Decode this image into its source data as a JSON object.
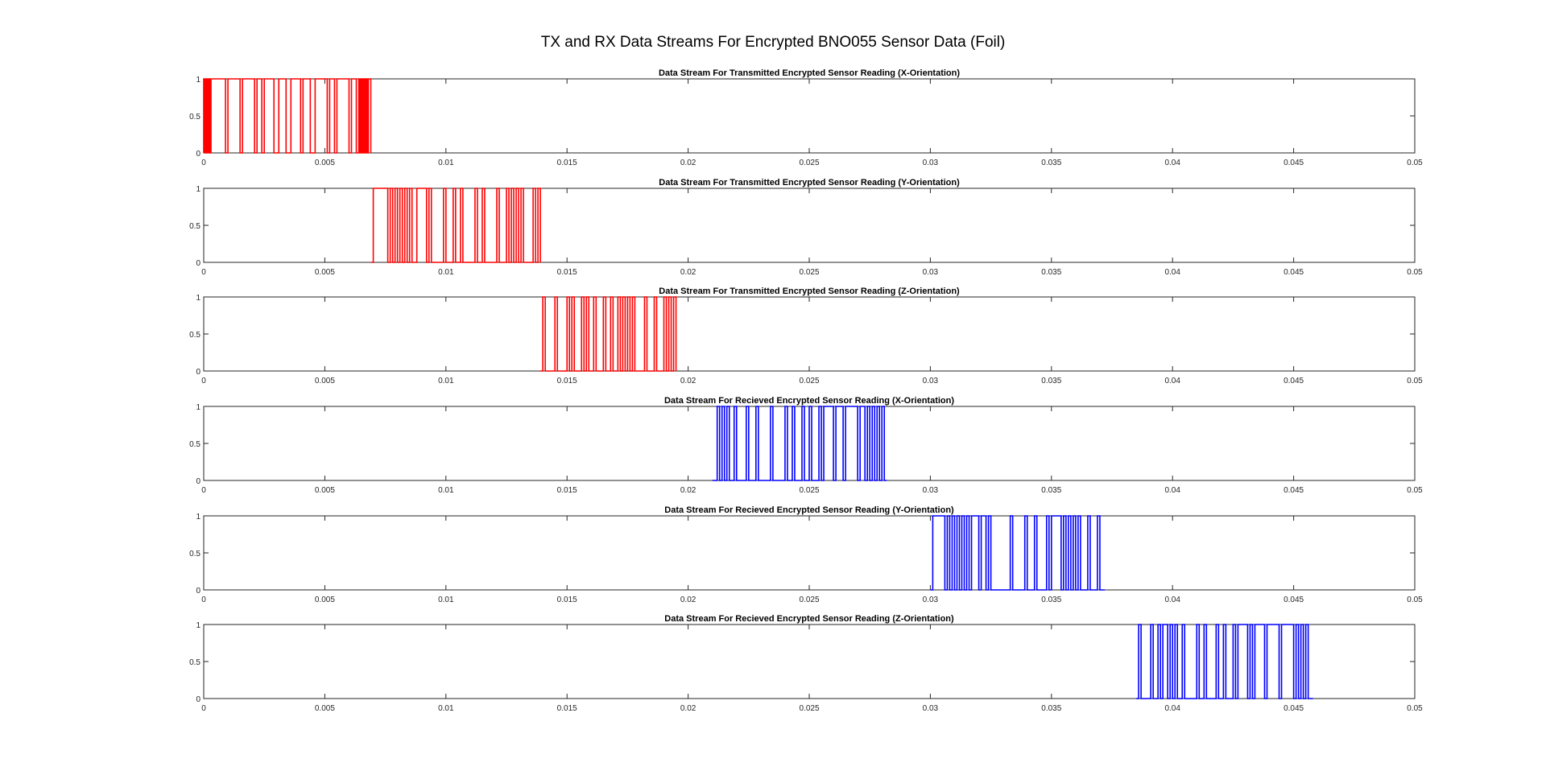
{
  "figure": {
    "title": "TX and RX Data Streams For Encrypted BNO055 Sensor Data (Foil)"
  },
  "chart_data": [
    {
      "type": "line",
      "title": "Data Stream For Transmitted Encrypted Sensor Reading (X-Orientation)",
      "xlim": [
        0,
        0.05
      ],
      "ylim": [
        0,
        1
      ],
      "xticks": [
        "0",
        "0.005",
        "0.01",
        "0.015",
        "0.02",
        "0.025",
        "0.03",
        "0.035",
        "0.04",
        "0.045",
        "0.05"
      ],
      "yticks": [
        "0",
        "0.5",
        "1"
      ],
      "grid": false,
      "color": "#ff0000",
      "series": [
        {
          "x_start": 0.0,
          "x_end": 0.0069,
          "edges": [
            0.0,
            5e-05,
            0.0001,
            0.00015,
            0.0002,
            0.00025,
            0.0003,
            0.0009,
            0.001,
            0.0015,
            0.0016,
            0.0021,
            0.0022,
            0.0024,
            0.0025,
            0.0029,
            0.0031,
            0.0034,
            0.0036,
            0.004,
            0.0041,
            0.0044,
            0.0046,
            0.0051,
            0.0052,
            0.0054,
            0.0055,
            0.006,
            0.0061,
            0.0063,
            0.0064,
            0.00645,
            0.0065,
            0.00655,
            0.0066,
            0.00665,
            0.0067,
            0.00675,
            0.0068,
            0.0069
          ]
        }
      ]
    },
    {
      "type": "line",
      "title": "Data Stream For Transmitted Encrypted Sensor Reading (Y-Orientation)",
      "xlim": [
        0,
        0.05
      ],
      "ylim": [
        0,
        1
      ],
      "xticks": [
        "0",
        "0.005",
        "0.01",
        "0.015",
        "0.02",
        "0.025",
        "0.03",
        "0.035",
        "0.04",
        "0.045",
        "0.05"
      ],
      "yticks": [
        "0",
        "0.5",
        "1"
      ],
      "grid": false,
      "color": "#ff0000",
      "series": [
        {
          "x_start": 0.0069,
          "x_end": 0.0139,
          "edges": [
            0.007,
            0.0076,
            0.0077,
            0.0078,
            0.0079,
            0.008,
            0.0081,
            0.0082,
            0.0083,
            0.0084,
            0.0085,
            0.0086,
            0.0088,
            0.0092,
            0.0093,
            0.0094,
            0.0099,
            0.01,
            0.0103,
            0.0104,
            0.0106,
            0.0107,
            0.0112,
            0.0113,
            0.0115,
            0.0116,
            0.0121,
            0.0122,
            0.0125,
            0.0126,
            0.0127,
            0.0128,
            0.0129,
            0.013,
            0.0131,
            0.0132,
            0.0136,
            0.0137,
            0.0138,
            0.0139
          ]
        }
      ]
    },
    {
      "type": "line",
      "title": "Data Stream For Transmitted Encrypted Sensor Reading (Z-Orientation)",
      "xlim": [
        0,
        0.05
      ],
      "ylim": [
        0,
        1
      ],
      "xticks": [
        "0",
        "0.005",
        "0.01",
        "0.015",
        "0.02",
        "0.025",
        "0.03",
        "0.035",
        "0.04",
        "0.045",
        "0.05"
      ],
      "yticks": [
        "0",
        "0.5",
        "1"
      ],
      "grid": false,
      "color": "#ff0000",
      "series": [
        {
          "x_start": 0.0139,
          "x_end": 0.0195,
          "edges": [
            0.014,
            0.0141,
            0.0145,
            0.0146,
            0.015,
            0.0151,
            0.0152,
            0.0153,
            0.0156,
            0.0157,
            0.0158,
            0.0159,
            0.0161,
            0.0162,
            0.0165,
            0.0166,
            0.0168,
            0.0169,
            0.0171,
            0.0172,
            0.0173,
            0.0174,
            0.0175,
            0.0176,
            0.0177,
            0.0178,
            0.0182,
            0.0183,
            0.0186,
            0.0187,
            0.019,
            0.0191,
            0.0192,
            0.0193,
            0.0194
          ]
        }
      ]
    },
    {
      "type": "line",
      "title": "Data Stream For Recieved Encrypted Sensor Reading (X-Orientation)",
      "xlim": [
        0,
        0.05
      ],
      "ylim": [
        0,
        1
      ],
      "xticks": [
        "0",
        "0.005",
        "0.01",
        "0.015",
        "0.02",
        "0.025",
        "0.03",
        "0.035",
        "0.04",
        "0.045",
        "0.05"
      ],
      "yticks": [
        "0",
        "0.5",
        "1"
      ],
      "grid": false,
      "color": "#0000ff",
      "series": [
        {
          "x_start": 0.021,
          "x_end": 0.0282,
          "edges": [
            0.0212,
            0.0213,
            0.0214,
            0.0215,
            0.0216,
            0.0217,
            0.0219,
            0.022,
            0.0224,
            0.0225,
            0.0228,
            0.0229,
            0.0234,
            0.0235,
            0.024,
            0.0241,
            0.0243,
            0.0244,
            0.0247,
            0.0248,
            0.025,
            0.0251,
            0.0254,
            0.0255,
            0.0256,
            0.026,
            0.0261,
            0.0264,
            0.0265,
            0.027,
            0.0271,
            0.0273,
            0.0274,
            0.0275,
            0.0276,
            0.0277,
            0.0278,
            0.0279,
            0.028,
            0.0281
          ]
        }
      ]
    },
    {
      "type": "line",
      "title": "Data Stream For Recieved Encrypted Sensor Reading (Y-Orientation)",
      "xlim": [
        0,
        0.05
      ],
      "ylim": [
        0,
        1
      ],
      "xticks": [
        "0",
        "0.005",
        "0.01",
        "0.015",
        "0.02",
        "0.025",
        "0.03",
        "0.035",
        "0.04",
        "0.045",
        "0.05"
      ],
      "yticks": [
        "0",
        "0.5",
        "1"
      ],
      "grid": false,
      "color": "#0000ff",
      "series": [
        {
          "x_start": 0.03,
          "x_end": 0.0372,
          "edges": [
            0.0301,
            0.0306,
            0.0307,
            0.0308,
            0.0309,
            0.031,
            0.0311,
            0.0312,
            0.0313,
            0.0314,
            0.0315,
            0.0316,
            0.0317,
            0.032,
            0.0321,
            0.0323,
            0.0324,
            0.0325,
            0.0333,
            0.0334,
            0.0339,
            0.034,
            0.0343,
            0.0344,
            0.0348,
            0.0349,
            0.035,
            0.0354,
            0.0355,
            0.0356,
            0.0357,
            0.0358,
            0.0359,
            0.036,
            0.0361,
            0.0362,
            0.0365,
            0.0366,
            0.0369,
            0.037
          ]
        }
      ]
    },
    {
      "type": "line",
      "title": "Data Stream For Recieved Encrypted Sensor Reading (Z-Orientation)",
      "xlim": [
        0,
        0.05
      ],
      "ylim": [
        0,
        1
      ],
      "xticks": [
        "0",
        "0.005",
        "0.01",
        "0.015",
        "0.02",
        "0.025",
        "0.03",
        "0.035",
        "0.04",
        "0.045",
        "0.05"
      ],
      "yticks": [
        "0",
        "0.5",
        "1"
      ],
      "grid": false,
      "color": "#0000ff",
      "series": [
        {
          "x_start": 0.0385,
          "x_end": 0.0458,
          "edges": [
            0.0386,
            0.0387,
            0.0391,
            0.0392,
            0.0394,
            0.0395,
            0.0396,
            0.0398,
            0.0399,
            0.04,
            0.0401,
            0.0402,
            0.0404,
            0.0405,
            0.041,
            0.0411,
            0.0413,
            0.0414,
            0.0418,
            0.0419,
            0.0421,
            0.0422,
            0.0425,
            0.0426,
            0.0427,
            0.0431,
            0.0432,
            0.0433,
            0.0434,
            0.0438,
            0.0439,
            0.0444,
            0.0445,
            0.045,
            0.0451,
            0.0452,
            0.0453,
            0.0454,
            0.0455,
            0.0456
          ]
        }
      ]
    }
  ]
}
